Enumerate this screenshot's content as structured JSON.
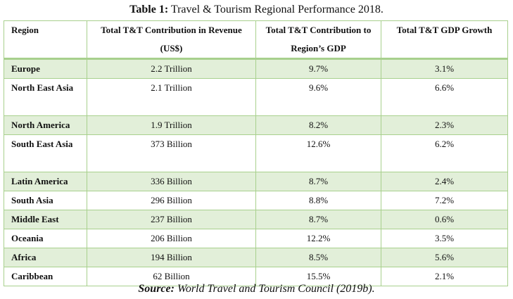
{
  "caption": {
    "label": "Table 1:",
    "title": "Travel & Tourism Regional Performance 2018."
  },
  "table": {
    "headers": [
      "Region",
      "Total T&T Contribution in Revenue (US$)",
      "Total T&T Contribution to Region’s GDP",
      "Total T&T GDP Growth"
    ],
    "rows": [
      {
        "region": "Europe",
        "revenue": "2.2 Trillion",
        "gdp_share": "9.7%",
        "growth": "3.1%"
      },
      {
        "region": "North East Asia",
        "revenue": "2.1 Trillion",
        "gdp_share": "9.6%",
        "growth": "6.6%"
      },
      {
        "region": "North America",
        "revenue": "1.9 Trillion",
        "gdp_share": "8.2%",
        "growth": "2.3%"
      },
      {
        "region": "South East Asia",
        "revenue": "373 Billion",
        "gdp_share": "12.6%",
        "growth": "6.2%"
      },
      {
        "region": "Latin America",
        "revenue": "336 Billion",
        "gdp_share": "8.7%",
        "growth": "2.4%"
      },
      {
        "region": "South Asia",
        "revenue": "296 Billion",
        "gdp_share": "8.8%",
        "growth": "7.2%"
      },
      {
        "region": "Middle East",
        "revenue": "237 Billion",
        "gdp_share": "8.7%",
        "growth": "0.6%"
      },
      {
        "region": "Oceania",
        "revenue": "206 Billion",
        "gdp_share": "12.2%",
        "growth": "3.5%"
      },
      {
        "region": "Africa",
        "revenue": "194 Billion",
        "gdp_share": "8.5%",
        "growth": "5.6%"
      },
      {
        "region": "Caribbean",
        "revenue": "62 Billion",
        "gdp_share": "15.5%",
        "growth": "2.1%"
      }
    ]
  },
  "source": {
    "label": "Source:",
    "text": "World Travel and Tourism Council (2019b)."
  },
  "colors": {
    "border": "#a8d08d",
    "shade": "#e2efd9"
  }
}
